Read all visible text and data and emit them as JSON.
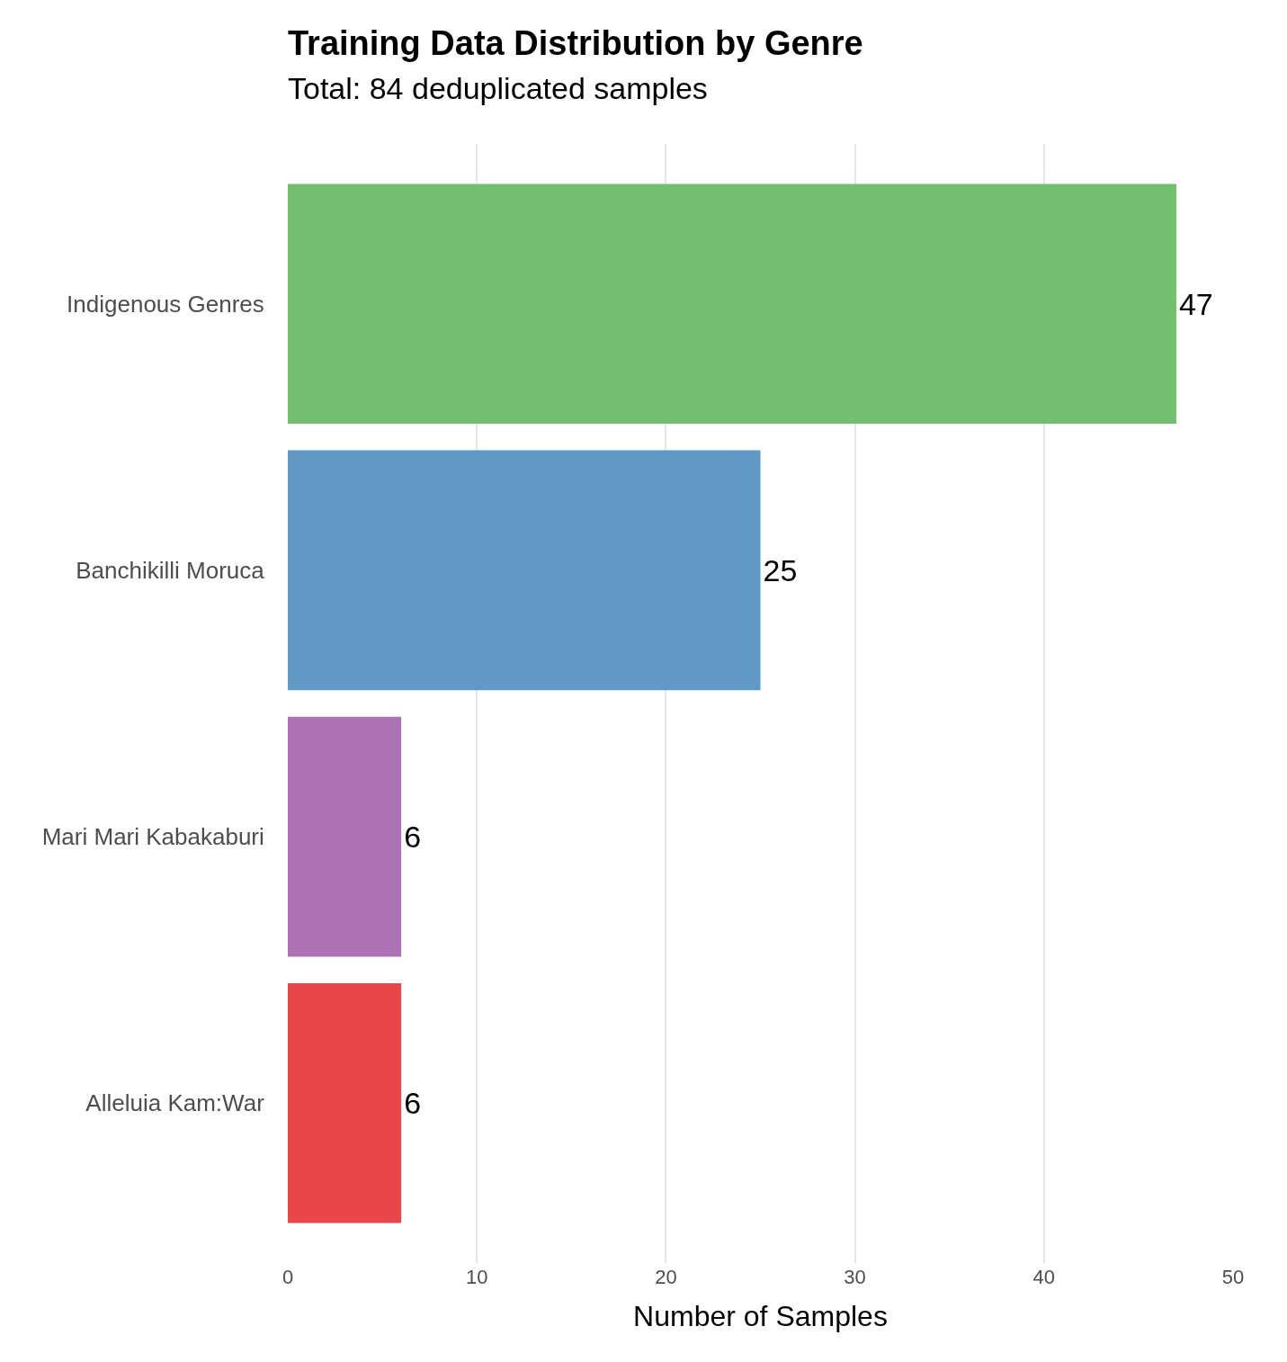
{
  "chart_data": {
    "type": "bar",
    "orientation": "horizontal",
    "title": "Training Data Distribution by Genre",
    "subtitle": "Total: 84 deduplicated samples",
    "xlabel": "Number of Samples",
    "categories": [
      "Indigenous Genres",
      "Banchikilli Moruca",
      "Mari Mari Kabakaburi",
      "Alleluia Kam:War"
    ],
    "values": [
      47,
      25,
      6,
      6
    ],
    "colors": [
      "#72bf6f",
      "#6098c6",
      "#ad73b5",
      "#e84749"
    ],
    "xlim": [
      0,
      50
    ],
    "xticks": [
      0,
      10,
      20,
      30,
      40,
      50
    ],
    "grid": "x",
    "data_labels": true
  }
}
